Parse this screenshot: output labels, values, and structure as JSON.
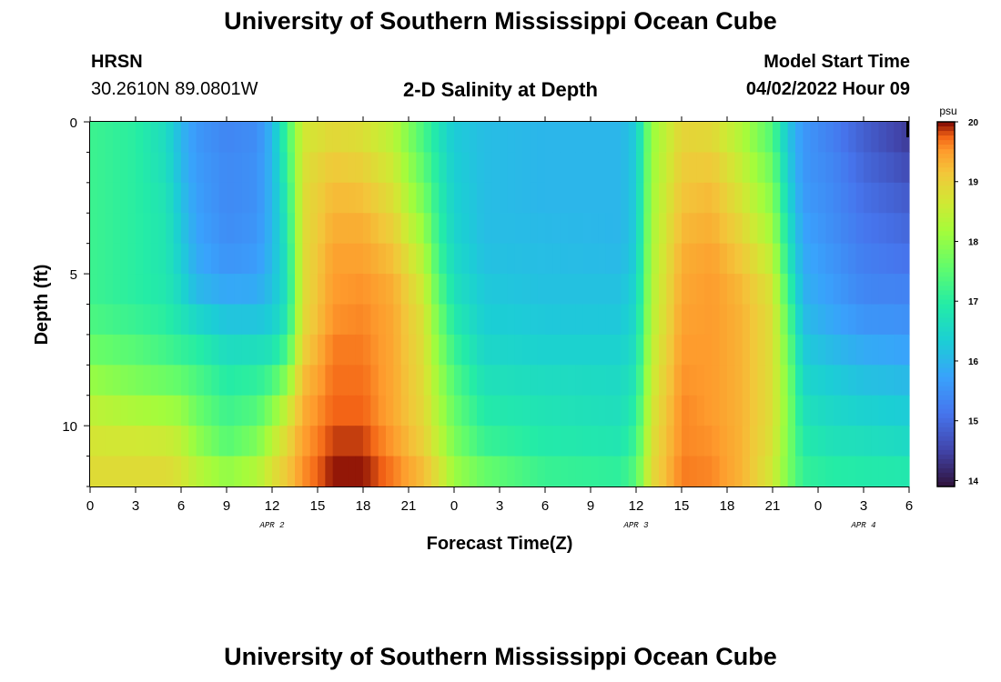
{
  "header": {
    "title": "University of Southern Mississippi Ocean Cube",
    "station": "HRSN",
    "coords": "30.2610N  89.0801W",
    "subtitle": "2-D Salinity at Depth",
    "start_label": "Model Start Time",
    "start_value": "04/02/2022 Hour 09"
  },
  "footer": {
    "title": "University of Southern Mississippi Ocean Cube"
  },
  "chart_data": {
    "type": "heatmap",
    "title": "2-D Salinity at Depth",
    "xlabel": "Forecast Time(Z)",
    "ylabel": "Depth (ft)",
    "x_hours_from_apr2_00z": [
      0,
      54
    ],
    "x_tick_labels": [
      "0",
      "3",
      "6",
      "9",
      "12",
      "15",
      "18",
      "21",
      "0",
      "3",
      "6",
      "9",
      "12",
      "15",
      "18",
      "21",
      "0",
      "3",
      "6"
    ],
    "x_day_labels": [
      {
        "label": "APR 2",
        "hour": 12
      },
      {
        "label": "APR 3",
        "hour": 36
      },
      {
        "label": "APR 4",
        "hour": 51
      }
    ],
    "ylim": [
      0,
      12
    ],
    "y_tick_labels": [
      "0",
      "5",
      "10"
    ],
    "y_ticks": [
      0,
      5,
      10
    ],
    "colorbar": {
      "unit": "psu",
      "min": 13.9,
      "max": 20,
      "ticks": [
        "20",
        "19",
        "18",
        "17",
        "16",
        "15",
        "14"
      ],
      "tick_values": [
        20,
        19,
        18,
        17,
        16,
        15,
        14
      ]
    },
    "depth_levels_ft": [
      0,
      1,
      2,
      3,
      4,
      5,
      6,
      7,
      8,
      9,
      10,
      11,
      12
    ],
    "profiles": [
      {
        "hour": 0,
        "values": [
          17.2,
          17.2,
          17.2,
          17.2,
          17.2,
          17.2,
          17.2,
          17.5,
          17.8,
          18.3,
          18.6,
          18.8,
          18.9
        ]
      },
      {
        "hour": 3,
        "values": [
          17.0,
          17.0,
          17.0,
          17.0,
          17.0,
          17.0,
          17.0,
          17.3,
          17.6,
          18.0,
          18.5,
          18.8,
          18.9
        ]
      },
      {
        "hour": 5,
        "values": [
          16.6,
          16.6,
          16.7,
          16.8,
          16.8,
          16.8,
          16.9,
          17.1,
          17.4,
          17.9,
          18.4,
          18.8,
          18.9
        ]
      },
      {
        "hour": 6,
        "values": [
          16.0,
          16.0,
          16.1,
          16.2,
          16.3,
          16.4,
          16.6,
          16.9,
          17.3,
          17.8,
          18.3,
          18.6,
          18.8
        ]
      },
      {
        "hour": 7,
        "values": [
          15.6,
          15.6,
          15.7,
          15.7,
          15.8,
          15.9,
          16.2,
          16.8,
          17.2,
          17.5,
          17.8,
          18.2,
          18.6
        ]
      },
      {
        "hour": 9,
        "values": [
          15.3,
          15.4,
          15.4,
          15.4,
          15.5,
          15.6,
          16.0,
          16.4,
          16.8,
          17.1,
          17.3,
          17.6,
          18.4
        ]
      },
      {
        "hour": 11,
        "values": [
          15.4,
          15.5,
          15.5,
          15.5,
          15.6,
          15.7,
          16.0,
          16.4,
          16.9,
          17.2,
          17.6,
          18.0,
          18.6
        ]
      },
      {
        "hour": 12,
        "values": [
          16.0,
          16.0,
          16.0,
          16.0,
          16.0,
          16.1,
          16.2,
          16.5,
          17.0,
          17.6,
          18.2,
          18.6,
          18.9
        ]
      },
      {
        "hour": 13,
        "values": [
          17.3,
          17.2,
          17.0,
          16.9,
          16.8,
          16.7,
          16.7,
          17.0,
          17.6,
          18.3,
          18.8,
          19.0,
          19.2
        ]
      },
      {
        "hour": 14,
        "values": [
          18.6,
          18.7,
          18.8,
          18.8,
          18.8,
          18.8,
          18.8,
          18.9,
          19.1,
          19.3,
          19.4,
          19.5,
          19.6
        ]
      },
      {
        "hour": 16,
        "values": [
          18.8,
          19.0,
          19.2,
          19.3,
          19.4,
          19.5,
          19.5,
          19.6,
          19.7,
          19.7,
          19.8,
          19.9,
          20.0
        ]
      },
      {
        "hour": 18,
        "values": [
          18.7,
          18.9,
          19.1,
          19.3,
          19.4,
          19.5,
          19.6,
          19.6,
          19.7,
          19.7,
          19.8,
          19.9,
          20.0
        ]
      },
      {
        "hour": 20,
        "values": [
          18.3,
          18.5,
          18.7,
          18.9,
          19.1,
          19.3,
          19.4,
          19.4,
          19.4,
          19.4,
          19.4,
          19.6,
          19.7
        ]
      },
      {
        "hour": 22,
        "values": [
          17.2,
          17.4,
          17.6,
          17.9,
          18.2,
          18.5,
          18.7,
          18.8,
          18.8,
          18.9,
          18.9,
          19.1,
          19.3
        ]
      },
      {
        "hour": 23,
        "values": [
          16.7,
          16.8,
          16.9,
          17.0,
          17.1,
          17.3,
          17.6,
          17.8,
          18.0,
          18.2,
          18.3,
          18.6,
          18.9
        ]
      },
      {
        "hour": 24,
        "values": [
          16.3,
          16.3,
          16.4,
          16.4,
          16.5,
          16.6,
          16.8,
          17.0,
          17.3,
          17.5,
          17.7,
          17.9,
          18.3
        ]
      },
      {
        "hour": 26,
        "values": [
          16.1,
          16.1,
          16.1,
          16.1,
          16.1,
          16.2,
          16.3,
          16.4,
          16.6,
          16.8,
          17.0,
          17.3,
          17.9
        ]
      },
      {
        "hour": 30,
        "values": [
          16.0,
          16.0,
          16.0,
          16.0,
          16.1,
          16.1,
          16.2,
          16.3,
          16.5,
          16.7,
          16.8,
          17.0,
          17.3
        ]
      },
      {
        "hour": 35,
        "values": [
          16.0,
          16.0,
          16.0,
          16.0,
          16.0,
          16.1,
          16.2,
          16.3,
          16.5,
          16.6,
          16.7,
          16.9,
          17.2
        ]
      },
      {
        "hour": 36,
        "values": [
          16.3,
          16.3,
          16.3,
          16.3,
          16.3,
          16.4,
          16.5,
          16.6,
          16.7,
          16.9,
          17.1,
          17.3,
          17.6
        ]
      },
      {
        "hour": 37,
        "values": [
          18.0,
          18.1,
          18.1,
          18.2,
          18.2,
          18.3,
          18.3,
          18.4,
          18.5,
          18.6,
          18.7,
          18.8,
          18.9
        ]
      },
      {
        "hour": 39,
        "values": [
          18.9,
          19.0,
          19.1,
          19.2,
          19.3,
          19.4,
          19.4,
          19.5,
          19.5,
          19.6,
          19.6,
          19.6,
          19.7
        ]
      },
      {
        "hour": 41,
        "values": [
          18.8,
          19.0,
          19.2,
          19.3,
          19.4,
          19.5,
          19.5,
          19.5,
          19.5,
          19.5,
          19.5,
          19.6,
          19.6
        ]
      },
      {
        "hour": 43,
        "values": [
          18.2,
          18.4,
          18.6,
          18.8,
          19.0,
          19.2,
          19.3,
          19.3,
          19.3,
          19.3,
          19.3,
          19.3,
          19.3
        ]
      },
      {
        "hour": 45,
        "values": [
          17.3,
          17.5,
          17.8,
          18.0,
          18.3,
          18.6,
          18.8,
          18.8,
          18.8,
          18.8,
          18.8,
          18.7,
          18.6
        ]
      },
      {
        "hour": 46,
        "values": [
          16.2,
          16.3,
          16.4,
          16.6,
          16.8,
          17.0,
          17.4,
          17.6,
          17.8,
          17.9,
          17.9,
          17.8,
          17.8
        ]
      },
      {
        "hour": 47,
        "values": [
          15.6,
          15.6,
          15.6,
          15.7,
          15.8,
          15.9,
          16.0,
          16.2,
          16.4,
          16.6,
          16.8,
          17.0,
          17.2
        ]
      },
      {
        "hour": 49,
        "values": [
          15.2,
          15.3,
          15.4,
          15.4,
          15.5,
          15.6,
          15.7,
          15.9,
          16.2,
          16.4,
          16.6,
          16.8,
          17.1
        ]
      },
      {
        "hour": 51,
        "values": [
          14.8,
          14.9,
          15.0,
          15.1,
          15.2,
          15.3,
          15.4,
          15.7,
          16.0,
          16.3,
          16.5,
          16.8,
          17.0
        ]
      },
      {
        "hour": 54,
        "values": [
          14.3,
          14.5,
          14.7,
          14.9,
          15.0,
          15.2,
          15.4,
          15.6,
          15.9,
          16.2,
          16.4,
          16.7,
          17.0
        ]
      }
    ]
  }
}
